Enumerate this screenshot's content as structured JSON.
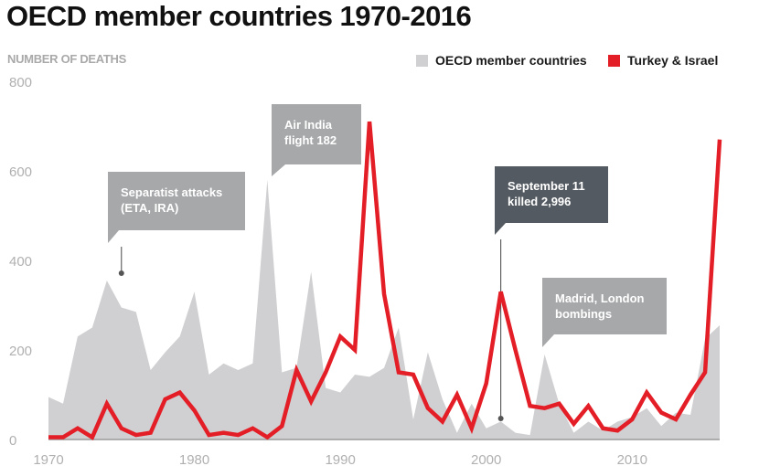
{
  "header": {
    "title": "OECD member countries 1970-2016",
    "y_axis_label": "NUMBER OF DEATHS"
  },
  "legend": {
    "oecd_label": "OECD member countries",
    "ti_label": "Turkey & Israel",
    "oecd_color": "#d0d0d2",
    "ti_color": "#e41e26"
  },
  "annotations": [
    {
      "id": "separatist",
      "lines": [
        "Separatist attacks",
        "(ETA, IRA)"
      ],
      "year": 1975,
      "color": "#a7a8aa"
    },
    {
      "id": "airindia",
      "lines": [
        "Air India",
        "flight 182"
      ],
      "year": 1985,
      "color": "#a7a8aa"
    },
    {
      "id": "sept11",
      "lines": [
        "September 11",
        "killed 2,996"
      ],
      "year": 2001,
      "color": "#545a61"
    },
    {
      "id": "madrid",
      "lines": [
        "Madrid, London",
        "bombings"
      ],
      "year": 2004,
      "color": "#a7a8aa"
    }
  ],
  "chart_data": {
    "type": "area",
    "title": "OECD member countries 1970-2016",
    "ylabel": "NUMBER OF DEATHS",
    "xlabel": "",
    "xlim": [
      1970,
      2016
    ],
    "ylim": [
      0,
      800
    ],
    "x_ticks": [
      1970,
      1980,
      1990,
      2000,
      2010
    ],
    "y_ticks": [
      0,
      200,
      400,
      600,
      800
    ],
    "grid": false,
    "legend_position": "top-right",
    "x": [
      1970,
      1971,
      1972,
      1973,
      1974,
      1975,
      1976,
      1977,
      1978,
      1979,
      1980,
      1981,
      1982,
      1983,
      1984,
      1985,
      1986,
      1987,
      1988,
      1989,
      1990,
      1991,
      1992,
      1993,
      1994,
      1995,
      1996,
      1997,
      1998,
      1999,
      2000,
      2001,
      2002,
      2003,
      2004,
      2005,
      2006,
      2007,
      2008,
      2009,
      2010,
      2011,
      2012,
      2013,
      2014,
      2015,
      2016
    ],
    "series": [
      {
        "name": "OECD member countries",
        "style": "area",
        "values": [
          95,
          80,
          230,
          250,
          355,
          295,
          285,
          155,
          195,
          230,
          330,
          145,
          170,
          155,
          170,
          580,
          150,
          160,
          375,
          115,
          105,
          145,
          140,
          160,
          250,
          45,
          195,
          90,
          15,
          80,
          25,
          40,
          15,
          10,
          190,
          80,
          15,
          40,
          20,
          40,
          50,
          70,
          30,
          60,
          55,
          225,
          255
        ]
      },
      {
        "name": "Turkey & Israel",
        "style": "line",
        "values": [
          5,
          5,
          25,
          5,
          80,
          25,
          10,
          15,
          90,
          105,
          65,
          10,
          15,
          10,
          25,
          5,
          30,
          155,
          85,
          150,
          230,
          200,
          710,
          325,
          150,
          145,
          70,
          40,
          100,
          25,
          125,
          330,
          200,
          75,
          70,
          80,
          35,
          75,
          25,
          20,
          45,
          105,
          60,
          45,
          100,
          150,
          670
        ]
      }
    ]
  }
}
